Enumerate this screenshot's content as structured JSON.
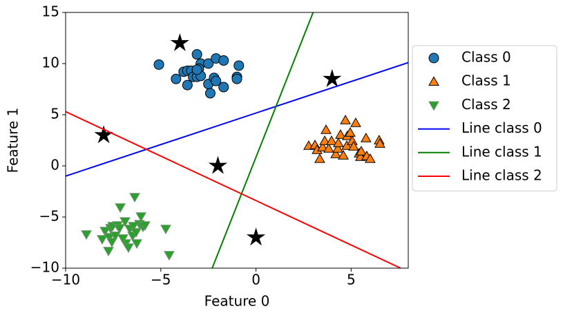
{
  "chart_data": {
    "type": "scatter",
    "x_label": "Feature 0",
    "y_label": "Feature 1",
    "xlim": [
      -10,
      8
    ],
    "ylim": [
      -10,
      15
    ],
    "xticks": [
      {
        "value": -10,
        "label": "−10"
      },
      {
        "value": -5,
        "label": "−5"
      },
      0,
      5
    ],
    "yticks": [
      {
        "value": -10,
        "label": "−10"
      },
      {
        "value": -5,
        "label": "−5"
      },
      0,
      5,
      10,
      15
    ],
    "grid": false,
    "legend": "right",
    "series": [
      {
        "name": "Class 0",
        "kind": "scatter",
        "marker": "circle",
        "color": "#1f77b4",
        "edgecolor": "#000000",
        "x": [
          -5.1,
          -4.2,
          -3.8,
          -3.6,
          -3.4,
          -3.6,
          -3.1,
          -2.9,
          -3.0,
          -3.3,
          -3.1,
          -2.9,
          -2.5,
          -2.5,
          -2.4,
          -2.2,
          -2.1,
          -2.1,
          -1.7,
          -1.7,
          -1.0,
          -1.0,
          -0.9,
          -3.1
        ],
        "y": [
          9.9,
          8.5,
          9.2,
          9.3,
          9.3,
          7.9,
          10.9,
          10.0,
          9.5,
          8.7,
          8.7,
          8.8,
          10.0,
          8.0,
          7.1,
          8.6,
          10.5,
          8.3,
          10.3,
          7.7,
          8.7,
          8.5,
          9.8,
          9.4
        ]
      },
      {
        "name": "Class 1",
        "kind": "scatter",
        "marker": "triangle-up",
        "color": "#ff7f0e",
        "edgecolor": "#000000",
        "x": [
          2.77,
          3.1,
          3.21,
          3.35,
          3.5,
          3.68,
          3.61,
          3.82,
          3.97,
          4.19,
          4.3,
          4.33,
          4.44,
          4.59,
          4.7,
          4.77,
          4.8,
          4.95,
          5.06,
          5.13,
          5.24,
          5.42,
          5.49,
          5.53,
          5.78,
          5.82,
          6.0,
          6.47,
          6.51
        ],
        "y": [
          1.96,
          2.03,
          1.55,
          0.68,
          1.82,
          3.51,
          2.43,
          1.69,
          2.43,
          1.15,
          1.69,
          2.23,
          3.04,
          1.01,
          4.46,
          1.96,
          2.91,
          3.24,
          2.43,
          1.89,
          4.19,
          1.22,
          0.88,
          1.42,
          2.7,
          0.95,
          0.68,
          2.5,
          2.16
        ]
      },
      {
        "name": "Class 2",
        "kind": "scatter",
        "marker": "triangle-down",
        "color": "#2ca02c",
        "edgecolor": "#6b8f6b",
        "x": [
          -8.91,
          -8.08,
          -7.93,
          -7.75,
          -7.71,
          -7.64,
          -7.53,
          -7.39,
          -7.28,
          -7.17,
          -7.13,
          -6.88,
          -6.84,
          -6.7,
          -6.63,
          -6.48,
          -6.44,
          -6.37,
          -6.3,
          -6.26,
          -6.12,
          -6.04,
          -5.94,
          -5.83,
          -4.74,
          -4.56,
          -7.57,
          -6.99
        ],
        "y": [
          -6.69,
          -7.16,
          -6.35,
          -8.31,
          -6.96,
          -6.08,
          -5.88,
          -6.82,
          -5.81,
          -6.08,
          -4.05,
          -5.41,
          -7.57,
          -7.97,
          -6.15,
          -6.82,
          -5.88,
          -3.04,
          -6.49,
          -7.57,
          -5.68,
          -4.93,
          -5.95,
          -5.81,
          -6.15,
          -8.72,
          -7.43,
          -7.09
        ]
      },
      {
        "kind": "scatter",
        "marker": "star",
        "color": "#000000",
        "edgecolor": "#000000",
        "x": [
          -4,
          -8,
          -2,
          0,
          4
        ],
        "y": [
          12,
          3,
          0,
          -7,
          8.5
        ]
      },
      {
        "name": "Line class 0",
        "kind": "line",
        "color": "#0000ff",
        "x": [
          -10,
          8
        ],
        "y": [
          -1,
          10.1
        ]
      },
      {
        "name": "Line class 1",
        "kind": "line",
        "color": "#008000",
        "x": [
          -2.3,
          3.0
        ],
        "y": [
          -10,
          15
        ]
      },
      {
        "name": "Line class 2",
        "kind": "line",
        "color": "#ff0000",
        "x": [
          -10,
          7.6
        ],
        "y": [
          5.3,
          -10
        ]
      }
    ]
  }
}
